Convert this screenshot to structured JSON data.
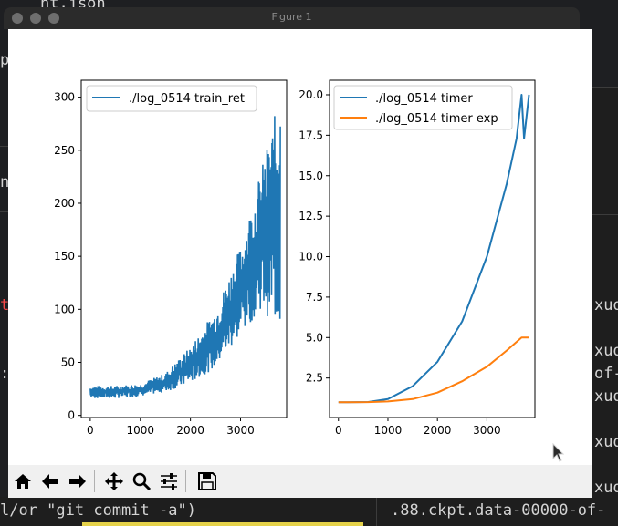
{
  "window": {
    "title": "Figure 1"
  },
  "background": {
    "top_fragment": "nt.json",
    "left_p": "p",
    "left_n": "n",
    "left_t": "t",
    "left_colon": ":",
    "right_lines": [
      "xud",
      "xud",
      "of-",
      "xud",
      "xud",
      "xud"
    ],
    "bottom_left": "l/or \"git commit -a\")",
    "bottom_right": ".88.ckpt.data-00000-of-"
  },
  "toolbar": {
    "buttons": [
      {
        "name": "home-icon"
      },
      {
        "name": "back-icon"
      },
      {
        "name": "forward-icon"
      },
      {
        "name": "pan-icon"
      },
      {
        "name": "zoom-icon"
      },
      {
        "name": "configure-subplots-icon"
      },
      {
        "name": "save-icon"
      }
    ]
  },
  "chart_data": [
    {
      "type": "line",
      "series": [
        {
          "name": "./log_0514 train_ret",
          "color": "#1f77b4"
        }
      ],
      "x_ticks": [
        "0",
        "1000",
        "2000",
        "3000"
      ],
      "y_ticks": [
        "0",
        "50",
        "100",
        "150",
        "200",
        "250",
        "300"
      ],
      "xlim": [
        -180,
        3920
      ],
      "ylim": [
        -2,
        316
      ],
      "x": [
        0,
        500,
        1000,
        1500,
        2000,
        2500,
        3000,
        3400,
        3800
      ],
      "y_low": [
        16,
        16,
        18,
        22,
        30,
        45,
        75,
        100,
        80
      ],
      "y_high": [
        28,
        28,
        30,
        40,
        65,
        100,
        160,
        230,
        305
      ],
      "legend": "top-left",
      "grid": false
    },
    {
      "type": "line",
      "series": [
        {
          "name": "./log_0514 timer",
          "color": "#1f77b4",
          "x": [
            0,
            600,
            1000,
            1500,
            2000,
            2500,
            3000,
            3400,
            3600,
            3700,
            3750,
            3850
          ],
          "y": [
            1.0,
            1.02,
            1.2,
            2.0,
            3.5,
            6.0,
            10.0,
            14.5,
            17.3,
            20.0,
            17.3,
            20.0
          ]
        },
        {
          "name": "./log_0514 timer exp",
          "color": "#ff7f0e",
          "x": [
            0,
            600,
            1000,
            1500,
            2000,
            2500,
            3000,
            3400,
            3700,
            3750,
            3850
          ],
          "y": [
            1.0,
            1.01,
            1.05,
            1.2,
            1.6,
            2.3,
            3.2,
            4.2,
            5.0,
            5.0,
            5.0
          ]
        }
      ],
      "x_ticks": [
        "0",
        "1000",
        "2000",
        "3000"
      ],
      "y_ticks": [
        "2.5",
        "5.0",
        "7.5",
        "10.0",
        "12.5",
        "15.0",
        "17.5",
        "20.0"
      ],
      "xlim": [
        -180,
        3970
      ],
      "ylin": null,
      "ylim": [
        0.06,
        20.9
      ],
      "legend": "top-left",
      "grid": false
    }
  ]
}
